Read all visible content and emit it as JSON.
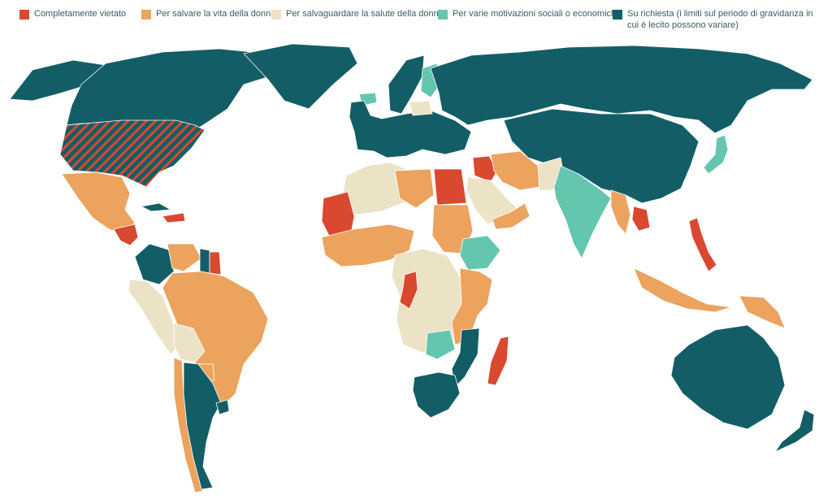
{
  "legend": {
    "items": [
      {
        "label": "Completamente vietato",
        "color": "#d9482f"
      },
      {
        "label": "Per salvare la vita della donna",
        "color": "#eba35e"
      },
      {
        "label": "Per salvaguardare la salute della donna",
        "color": "#ece2c6"
      },
      {
        "label": "Per varie motivazioni sociali o economiche",
        "color": "#64c6af"
      },
      {
        "label": "Su richiesta (i limiti sul periodo di gravidanza in cui è lecito possono variare)",
        "color": "#135e66"
      }
    ]
  },
  "map": {
    "categories": {
      "banned": "#d9482f",
      "life": "#eba35e",
      "health": "#ece2c6",
      "socio": "#64c6af",
      "request": "#135e66",
      "nodata": "#d9d9d9"
    },
    "regions": [
      {
        "name": "canada",
        "category": "request"
      },
      {
        "name": "alaska",
        "category": "request"
      },
      {
        "name": "greenland",
        "category": "request"
      },
      {
        "name": "united-states",
        "category": "banned-hatched"
      },
      {
        "name": "mexico",
        "category": "life"
      },
      {
        "name": "central-america",
        "category": "banned"
      },
      {
        "name": "cuba",
        "category": "request"
      },
      {
        "name": "hispaniola",
        "category": "banned"
      },
      {
        "name": "colombia",
        "category": "request"
      },
      {
        "name": "venezuela",
        "category": "life"
      },
      {
        "name": "guyana",
        "category": "request"
      },
      {
        "name": "suriname",
        "category": "banned"
      },
      {
        "name": "peru-ecuador",
        "category": "health"
      },
      {
        "name": "brazil",
        "category": "life"
      },
      {
        "name": "bolivia",
        "category": "health"
      },
      {
        "name": "chile",
        "category": "life"
      },
      {
        "name": "argentina",
        "category": "request"
      },
      {
        "name": "uruguay",
        "category": "request"
      },
      {
        "name": "paraguay",
        "category": "life"
      },
      {
        "name": "iceland",
        "category": "socio"
      },
      {
        "name": "scandinavia",
        "category": "request"
      },
      {
        "name": "finland",
        "category": "socio"
      },
      {
        "name": "western-europe",
        "category": "request"
      },
      {
        "name": "poland",
        "category": "health"
      },
      {
        "name": "russia",
        "category": "request"
      },
      {
        "name": "north-africa",
        "category": "health"
      },
      {
        "name": "mauritania",
        "category": "banned"
      },
      {
        "name": "libya",
        "category": "life"
      },
      {
        "name": "egypt",
        "category": "banned"
      },
      {
        "name": "sudan",
        "category": "life"
      },
      {
        "name": "ethiopia",
        "category": "socio"
      },
      {
        "name": "west-africa",
        "category": "life"
      },
      {
        "name": "central-africa",
        "category": "health"
      },
      {
        "name": "congo",
        "category": "banned"
      },
      {
        "name": "east-africa",
        "category": "life"
      },
      {
        "name": "zambia",
        "category": "socio"
      },
      {
        "name": "mozambique",
        "category": "request"
      },
      {
        "name": "south-africa",
        "category": "request"
      },
      {
        "name": "madagascar",
        "category": "banned"
      },
      {
        "name": "iraq",
        "category": "banned"
      },
      {
        "name": "iran",
        "category": "life"
      },
      {
        "name": "saudi-arabia",
        "category": "health"
      },
      {
        "name": "yemen-oman",
        "category": "life"
      },
      {
        "name": "pakistan",
        "category": "health"
      },
      {
        "name": "india",
        "category": "socio"
      },
      {
        "name": "myanmar",
        "category": "life"
      },
      {
        "name": "china",
        "category": "request"
      },
      {
        "name": "japan",
        "category": "socio"
      },
      {
        "name": "laos",
        "category": "banned"
      },
      {
        "name": "philippines",
        "category": "banned"
      },
      {
        "name": "indonesia",
        "category": "life"
      },
      {
        "name": "new-guinea",
        "category": "life"
      },
      {
        "name": "australia",
        "category": "request"
      },
      {
        "name": "new-zealand",
        "category": "request"
      }
    ]
  }
}
